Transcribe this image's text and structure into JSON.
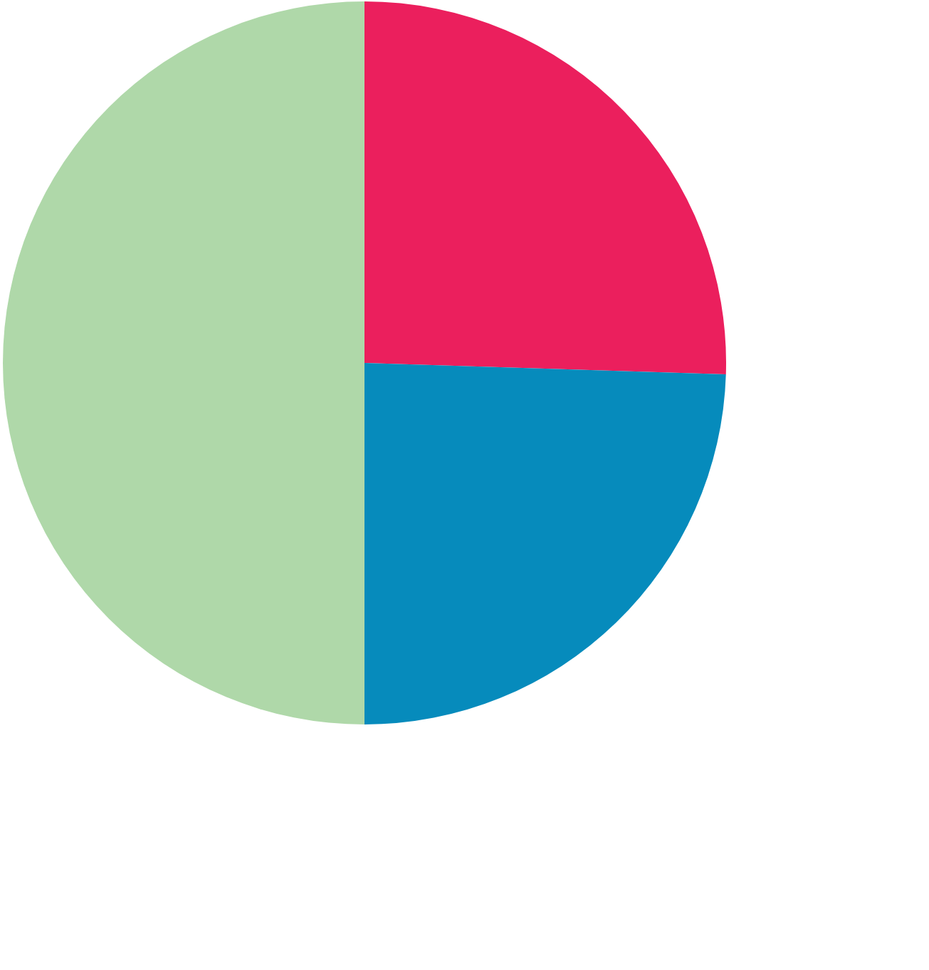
{
  "chart_data": {
    "type": "pie",
    "values": [
      25.5,
      24.5,
      50
    ],
    "colors": [
      "#eb1f5d",
      "#068bbc",
      "#afd8a9"
    ]
  }
}
